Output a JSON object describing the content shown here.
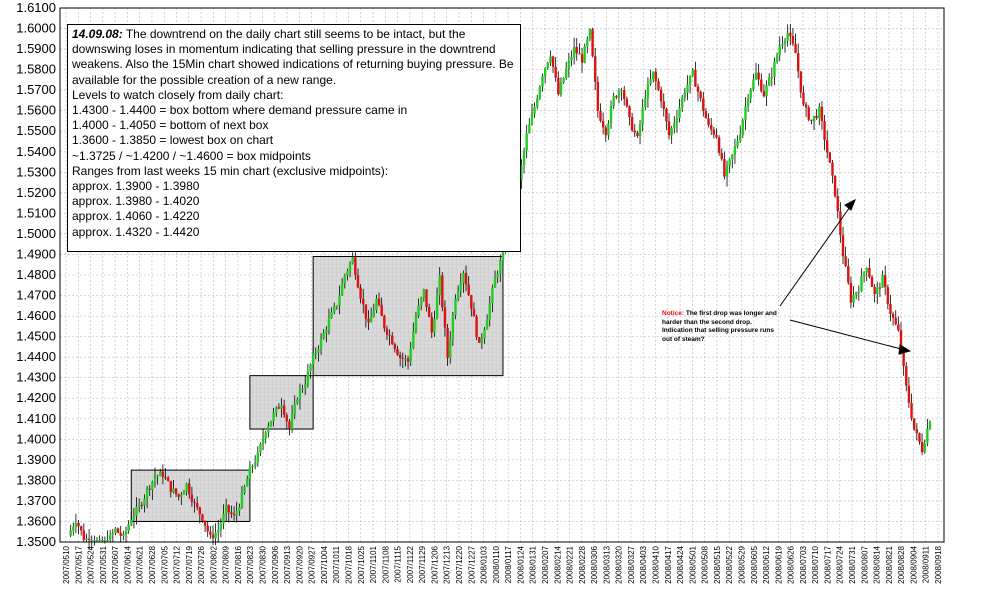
{
  "chart_data": {
    "type": "candlestick",
    "title": "",
    "xlabel": "",
    "ylabel": "",
    "ylim": [
      1.35,
      1.61
    ],
    "yticks": [
      "1.3500",
      "1.3600",
      "1.3700",
      "1.3800",
      "1.3900",
      "1.4000",
      "1.4100",
      "1.4200",
      "1.4300",
      "1.4400",
      "1.4500",
      "1.4600",
      "1.4700",
      "1.4800",
      "1.4900",
      "1.5000",
      "1.5100",
      "1.5200",
      "1.5300",
      "1.5400",
      "1.5500",
      "1.5600",
      "1.5700",
      "1.5800",
      "1.5900",
      "1.6000",
      "1.6100"
    ],
    "xticks": [
      "2007/0510",
      "2007/0517",
      "2007/0524",
      "2007/0531",
      "2007/0607",
      "2007/0614",
      "2007/0621",
      "2007/0628",
      "2007/0705",
      "2007/0712",
      "2007/0719",
      "2007/0726",
      "2007/0802",
      "2007/0809",
      "2007/0816",
      "2007/0823",
      "2007/0830",
      "2007/0906",
      "2007/0913",
      "2007/0920",
      "2007/0927",
      "2007/1004",
      "2007/1011",
      "2007/1018",
      "2007/1025",
      "2007/1101",
      "2007/1108",
      "2007/1115",
      "2007/1122",
      "2007/1129",
      "2007/1206",
      "2007/1213",
      "2007/1220",
      "2007/1227",
      "2008/0103",
      "2008/0110",
      "2008/0117",
      "2008/0124",
      "2008/0131",
      "2008/0207",
      "2008/0214",
      "2008/0221",
      "2008/0228",
      "2008/0306",
      "2008/0313",
      "2008/0320",
      "2008/0327",
      "2008/0403",
      "2008/0410",
      "2008/0417",
      "2008/0424",
      "2008/0501",
      "2008/0508",
      "2008/0515",
      "2008/0522",
      "2008/0529",
      "2008/0605",
      "2008/0612",
      "2008/0619",
      "2008/0626",
      "2008/0703",
      "2008/0710",
      "2008/0717",
      "2008/0724",
      "2008/0731",
      "2008/0807",
      "2008/0814",
      "2008/0821",
      "2008/0828",
      "2008/0904",
      "2008/0911",
      "2008/0918"
    ],
    "close_path": [
      [
        0,
        1.353
      ],
      [
        1,
        1.361
      ],
      [
        2,
        1.352
      ],
      [
        3,
        1.35
      ],
      [
        4,
        1.349
      ],
      [
        5,
        1.35
      ],
      [
        6,
        1.356
      ],
      [
        7,
        1.352
      ],
      [
        8,
        1.362
      ],
      [
        9,
        1.367
      ],
      [
        10,
        1.375
      ],
      [
        11,
        1.382
      ],
      [
        12,
        1.383
      ],
      [
        13,
        1.376
      ],
      [
        14,
        1.372
      ],
      [
        15,
        1.378
      ],
      [
        16,
        1.368
      ],
      [
        17,
        1.362
      ],
      [
        18,
        1.352
      ],
      [
        19,
        1.356
      ],
      [
        20,
        1.366
      ],
      [
        21,
        1.362
      ],
      [
        22,
        1.372
      ],
      [
        23,
        1.385
      ],
      [
        24,
        1.392
      ],
      [
        25,
        1.405
      ],
      [
        26,
        1.412
      ],
      [
        27,
        1.418
      ],
      [
        28,
        1.405
      ],
      [
        29,
        1.421
      ],
      [
        30,
        1.428
      ],
      [
        31,
        1.44
      ],
      [
        32,
        1.448
      ],
      [
        33,
        1.458
      ],
      [
        34,
        1.466
      ],
      [
        35,
        1.48
      ],
      [
        36,
        1.488
      ],
      [
        37,
        1.47
      ],
      [
        38,
        1.455
      ],
      [
        39,
        1.468
      ],
      [
        40,
        1.455
      ],
      [
        41,
        1.448
      ],
      [
        42,
        1.44
      ],
      [
        43,
        1.438
      ],
      [
        44,
        1.46
      ],
      [
        45,
        1.472
      ],
      [
        46,
        1.452
      ],
      [
        47,
        1.478
      ],
      [
        48,
        1.44
      ],
      [
        49,
        1.47
      ],
      [
        50,
        1.482
      ],
      [
        51,
        1.465
      ],
      [
        52,
        1.445
      ],
      [
        53,
        1.46
      ],
      [
        54,
        1.478
      ],
      [
        55,
        1.49
      ],
      [
        56,
        1.515
      ],
      [
        57,
        1.525
      ],
      [
        58,
        1.548
      ],
      [
        59,
        1.562
      ],
      [
        60,
        1.578
      ],
      [
        61,
        1.588
      ],
      [
        62,
        1.568
      ],
      [
        63,
        1.58
      ],
      [
        64,
        1.59
      ],
      [
        65,
        1.585
      ],
      [
        66,
        1.598
      ],
      [
        67,
        1.56
      ],
      [
        68,
        1.55
      ],
      [
        69,
        1.566
      ],
      [
        70,
        1.572
      ],
      [
        71,
        1.555
      ],
      [
        72,
        1.546
      ],
      [
        73,
        1.568
      ],
      [
        74,
        1.578
      ],
      [
        75,
        1.566
      ],
      [
        76,
        1.548
      ],
      [
        77,
        1.558
      ],
      [
        78,
        1.57
      ],
      [
        79,
        1.578
      ],
      [
        80,
        1.565
      ],
      [
        81,
        1.552
      ],
      [
        82,
        1.548
      ],
      [
        83,
        1.528
      ],
      [
        84,
        1.538
      ],
      [
        85,
        1.55
      ],
      [
        86,
        1.568
      ],
      [
        87,
        1.578
      ],
      [
        88,
        1.568
      ],
      [
        89,
        1.578
      ],
      [
        90,
        1.592
      ],
      [
        91,
        1.598
      ],
      [
        92,
        1.588
      ],
      [
        93,
        1.562
      ],
      [
        94,
        1.555
      ],
      [
        95,
        1.56
      ],
      [
        96,
        1.54
      ],
      [
        97,
        1.52
      ],
      [
        98,
        1.49
      ],
      [
        99,
        1.468
      ],
      [
        100,
        1.474
      ],
      [
        101,
        1.485
      ],
      [
        102,
        1.47
      ],
      [
        103,
        1.478
      ],
      [
        104,
        1.462
      ],
      [
        105,
        1.452
      ],
      [
        106,
        1.425
      ],
      [
        107,
        1.405
      ],
      [
        108,
        1.395
      ],
      [
        109,
        1.41
      ]
    ],
    "range_boxes": [
      {
        "x": [
          8,
          23
        ],
        "y": [
          1.36,
          1.385
        ]
      },
      {
        "x": [
          23,
          31
        ],
        "y": [
          1.405,
          1.431
        ]
      },
      {
        "x": [
          31,
          55
        ],
        "y": [
          1.431,
          1.489
        ]
      }
    ]
  },
  "annotation": {
    "date": "14.09.08:",
    "first_line": "The downtrend on the daily chart still seems to be intact, but the downswing loses in momentum indicating that selling pressure in the downtrend weakens. Also the 15Min chart showed indications of returning buying pressure. Be available for the possible creation of a new range.",
    "lines": [
      "Levels to watch closely from daily chart:",
      "1.4300 - 1.4400 = box bottom where demand pressure came in",
      "1.4000 - 1.4050 = bottom of next box",
      "1.3600 - 1.3850 = lowest box on chart",
      "~1.3725 / ~1.4200 / ~1.4600 = box midpoints",
      "Ranges from last weeks 15 min chart (exclusive midpoints):",
      "approx. 1.3900 - 1.3980",
      "approx. 1.3980 - 1.4020",
      "approx. 1.4060 - 1.4220",
      "approx. 1.4320 - 1.4420"
    ]
  },
  "notice": {
    "label": "Notice:",
    "text": "The first drop was longer and harder than the second drop. Indication that selling pressure runs out of steam?"
  },
  "colors": {
    "up_candle": "#22cc22",
    "down_candle": "#dd1111",
    "wick": "#000000",
    "grid": "#b8b8b8",
    "box_fill": "#d9d9d9",
    "box_stroke": "#000000"
  }
}
